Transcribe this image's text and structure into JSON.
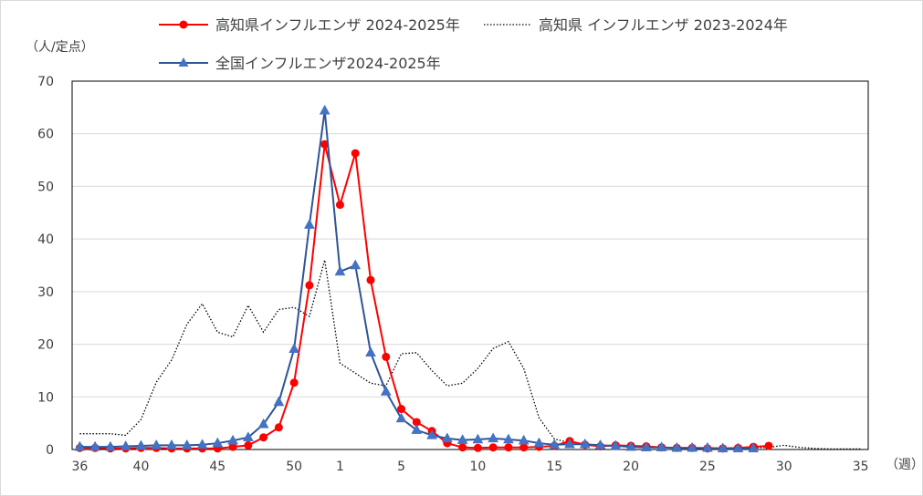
{
  "chart_data": {
    "type": "line",
    "ylabel": "（人/定点）",
    "xlabel": "（週）",
    "ylim": [
      0,
      70
    ],
    "yticks": [
      0,
      10,
      20,
      30,
      40,
      50,
      60,
      70
    ],
    "x_tick_labels": [
      "36",
      "40",
      "45",
      "50",
      "1",
      "5",
      "10",
      "15",
      "20",
      "25",
      "30",
      "35"
    ],
    "weeks": [
      36,
      37,
      38,
      39,
      40,
      41,
      42,
      43,
      44,
      45,
      46,
      47,
      48,
      49,
      50,
      51,
      52,
      1,
      2,
      3,
      4,
      5,
      6,
      7,
      8,
      9,
      10,
      11,
      12,
      13,
      14,
      15,
      16,
      17,
      18,
      19,
      20,
      21,
      22,
      23,
      24,
      25,
      26,
      27,
      28,
      29,
      30,
      31,
      32,
      33,
      34,
      35
    ],
    "grid": "horizontal",
    "legend_position": "top",
    "series": [
      {
        "name": "高知県インフルエンザ 2024-2025年",
        "color": "#ff0000",
        "style": "solid-circle",
        "values": [
          0.3,
          0.3,
          0.2,
          0.2,
          0.3,
          0.3,
          0.2,
          0.2,
          0.2,
          0.2,
          0.5,
          0.8,
          2.3,
          4.2,
          12.7,
          31.2,
          58.0,
          46.5,
          56.3,
          32.2,
          17.6,
          7.7,
          5.2,
          3.5,
          1.2,
          0.4,
          0.3,
          0.4,
          0.4,
          0.4,
          0.5,
          0.7,
          1.6,
          0.9,
          0.6,
          0.8,
          0.7,
          0.6,
          0.4,
          0.3,
          0.3,
          0.2,
          0.2,
          0.3,
          0.5,
          0.7
        ]
      },
      {
        "name": "高知県 インフルエンザ 2023-2024年",
        "color": "#000000",
        "style": "dotted",
        "values": [
          3.0,
          3.0,
          3.0,
          2.7,
          5.7,
          12.8,
          17.0,
          23.8,
          27.7,
          22.3,
          21.4,
          27.4,
          22.3,
          26.6,
          27.0,
          25.3,
          36.0,
          16.4,
          14.5,
          12.6,
          12.1,
          18.2,
          18.4,
          15.0,
          12.1,
          12.6,
          15.4,
          19.2,
          20.5,
          15.4,
          6.0,
          2.0,
          1.3,
          1.0,
          0.8,
          0.6,
          0.5,
          0.4,
          0.4,
          0.3,
          0.3,
          0.3,
          0.3,
          0.3,
          0.3,
          0.4,
          0.8,
          0.4,
          0.2,
          0.1,
          0.1,
          0.1
        ]
      },
      {
        "name": "全国インフルエンザ2024-2025年",
        "color": "#2f5597",
        "style": "solid-triangle",
        "values": [
          0.5,
          0.5,
          0.5,
          0.6,
          0.7,
          0.8,
          0.8,
          0.8,
          0.9,
          1.2,
          1.7,
          2.3,
          4.8,
          9.0,
          19.1,
          42.7,
          64.4,
          33.8,
          35.0,
          18.4,
          11.0,
          5.9,
          3.7,
          2.7,
          2.1,
          1.8,
          1.9,
          2.1,
          1.9,
          1.7,
          1.2,
          0.9,
          1.0,
          1.0,
          0.8,
          0.7,
          0.5,
          0.4,
          0.4,
          0.3,
          0.3,
          0.3,
          0.2,
          0.2,
          0.2
        ]
      }
    ]
  }
}
